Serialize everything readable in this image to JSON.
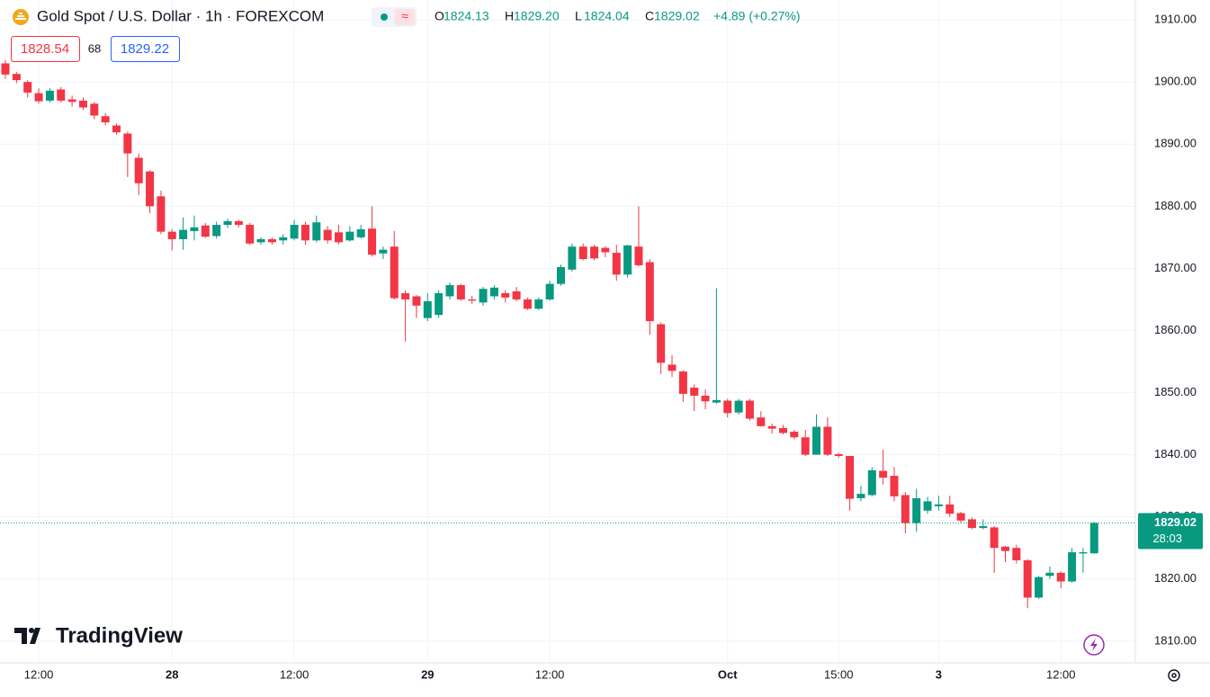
{
  "chart_data": {
    "type": "candlestick",
    "title": "Gold Spot / U.S. Dollar · 1h · FOREXCOM",
    "ohlc_header": [
      {
        "label": "O",
        "value": "1824.13"
      },
      {
        "label": "H",
        "value": "1829.20"
      },
      {
        "label": "L",
        "value": "1824.04"
      },
      {
        "label": "C",
        "value": "1829.02"
      }
    ],
    "change": "+4.89 (+0.27%)",
    "bid": "1828.54",
    "spread": "68",
    "ask": "1829.22",
    "last_price": {
      "value": 1829.02,
      "label": "1829.02"
    },
    "countdown": "28:03",
    "watermark": "TradingView",
    "up_color": "#089981",
    "down_color": "#f23645",
    "grid": true,
    "categories": [
      null,
      null,
      null,
      "12:00",
      null,
      null,
      null,
      null,
      null,
      null,
      null,
      null,
      null,
      null,
      null,
      "28",
      null,
      null,
      null,
      null,
      null,
      null,
      null,
      null,
      null,
      null,
      "12:00",
      null,
      null,
      null,
      null,
      null,
      null,
      null,
      null,
      null,
      null,
      null,
      "29",
      null,
      null,
      null,
      null,
      null,
      null,
      null,
      null,
      null,
      null,
      "12:00",
      null,
      null,
      null,
      null,
      null,
      null,
      null,
      null,
      null,
      null,
      null,
      null,
      null,
      null,
      null,
      "Oct",
      null,
      null,
      null,
      null,
      null,
      null,
      null,
      null,
      null,
      "15:00",
      null,
      null,
      null,
      null,
      null,
      null,
      null,
      null,
      "3",
      null,
      null,
      null,
      null,
      null,
      null,
      null,
      null,
      null,
      null,
      "12:00",
      null,
      null,
      null
    ],
    "open": [
      1903,
      1901.3,
      1900,
      1898.2,
      1897,
      1898.8,
      1897.2,
      1897,
      1896.5,
      1894.5,
      1893,
      1891.7,
      1887.8,
      1885.6,
      1881.6,
      1875.9,
      1874.7,
      1876,
      1876.9,
      1875.2,
      1877,
      1877.6,
      1877,
      1874.2,
      1874.7,
      1874.5,
      1874.8,
      1877,
      1874.5,
      1876.2,
      1875.8,
      1874.5,
      1875,
      1876.4,
      1872.4,
      1873.5,
      1866,
      1865.5,
      1862,
      1862.5,
      1865.5,
      1867.3,
      1865,
      1864.5,
      1865.5,
      1866,
      1866.3,
      1865,
      1863.5,
      1865,
      1867.5,
      1869.8,
      1873.5,
      1873.5,
      1873.3,
      1872.5,
      1869,
      1873.5,
      1871,
      1861,
      1854.5,
      1853.4,
      1850.8,
      1849.5,
      1848.4,
      1848.7,
      1846.8,
      1848.7,
      1846,
      1844.6,
      1844.3,
      1843.7,
      1842.8,
      1840,
      1844.5,
      1840.1,
      1839.8,
      1833,
      1833.5,
      1837.4,
      1836.6,
      1833.5,
      1829,
      1831,
      1831.7,
      1832,
      1830.6,
      1829.6,
      1828.2,
      1828.3,
      1825.2,
      1825,
      1823,
      1817,
      1820.5,
      1821,
      1819.6,
      1824.1,
      1824.13
    ],
    "high": [
      1903.5,
      1901.6,
      1900.3,
      1899,
      1899,
      1899.2,
      1897.8,
      1897.5,
      1896.8,
      1895,
      1893.3,
      1892,
      1888.5,
      1885.8,
      1882.5,
      1876.3,
      1878.2,
      1878.5,
      1877.3,
      1877.5,
      1878,
      1877.8,
      1877.3,
      1875,
      1875,
      1875.5,
      1877.8,
      1877.5,
      1878.5,
      1876.8,
      1877,
      1876.8,
      1877,
      1880,
      1873.5,
      1876,
      1866.5,
      1865.7,
      1866,
      1866.5,
      1867.7,
      1867.5,
      1865.6,
      1867,
      1867.3,
      1866.5,
      1867,
      1865.3,
      1865.3,
      1868,
      1870.6,
      1874,
      1874,
      1873.8,
      1873.6,
      1873.8,
      1873.8,
      1880,
      1871.5,
      1861.3,
      1856,
      1853.6,
      1851.3,
      1850.5,
      1866.8,
      1849,
      1849,
      1849,
      1847,
      1845,
      1844.8,
      1844,
      1844,
      1846.5,
      1846,
      1840.3,
      1839.8,
      1835,
      1838,
      1840.8,
      1838,
      1834,
      1834.5,
      1833.2,
      1833.4,
      1833.4,
      1830.8,
      1829.9,
      1829.6,
      1828.5,
      1825.3,
      1825.5,
      1823.2,
      1820.5,
      1822,
      1821.2,
      1825,
      1825,
      1829.2
    ],
    "low": [
      1900.5,
      1899.8,
      1897.5,
      1896.5,
      1896.7,
      1896.7,
      1896,
      1895.5,
      1894,
      1893,
      1891.5,
      1884.7,
      1881.8,
      1878.9,
      1875.5,
      1872.9,
      1873,
      1874.5,
      1874.9,
      1874.8,
      1876.5,
      1876.6,
      1873.8,
      1873.8,
      1873.8,
      1873.8,
      1874.5,
      1873.8,
      1874.2,
      1874,
      1873.9,
      1874.3,
      1874.8,
      1871.9,
      1871.5,
      1865,
      1858.2,
      1862,
      1861.5,
      1862,
      1865,
      1864.8,
      1864.3,
      1864,
      1865,
      1864.5,
      1864.7,
      1863.3,
      1863.3,
      1864.8,
      1867.2,
      1869.5,
      1871.3,
      1871.3,
      1871.8,
      1868,
      1868.5,
      1870.3,
      1859.3,
      1853,
      1852.5,
      1848.5,
      1847,
      1847.3,
      1848.2,
      1846,
      1846.5,
      1845.5,
      1844.5,
      1843.4,
      1843.3,
      1842.5,
      1839.8,
      1840,
      1839.8,
      1839.5,
      1831,
      1832.5,
      1833.3,
      1835.2,
      1832.5,
      1827.3,
      1827.6,
      1830.5,
      1831,
      1830,
      1829,
      1828,
      1828,
      1821,
      1822.7,
      1822.5,
      1815.3,
      1816.8,
      1820,
      1818.5,
      1819.4,
      1821,
      1824.04
    ],
    "close": [
      1901.2,
      1900.3,
      1898.3,
      1896.9,
      1898.6,
      1897,
      1896.8,
      1895.9,
      1894.6,
      1893.5,
      1891.9,
      1888.5,
      1883.7,
      1880,
      1875.9,
      1874.7,
      1876.2,
      1876.6,
      1875.1,
      1877,
      1877.6,
      1877,
      1874,
      1874.7,
      1874.2,
      1875,
      1877,
      1874.5,
      1877.4,
      1874.5,
      1874.2,
      1875.9,
      1876.3,
      1872.2,
      1873,
      1865.2,
      1865,
      1864,
      1864.7,
      1866,
      1867.3,
      1865,
      1864.8,
      1866.7,
      1866.9,
      1865.3,
      1865,
      1863.5,
      1865,
      1867.5,
      1870.2,
      1873.5,
      1871.5,
      1871.6,
      1872.6,
      1869,
      1873.7,
      1870.5,
      1861.5,
      1854.8,
      1853.5,
      1849.8,
      1849.5,
      1848.6,
      1848.8,
      1846.7,
      1848.7,
      1845.8,
      1844.6,
      1844.2,
      1843.5,
      1842.8,
      1840,
      1844.5,
      1840,
      1839.8,
      1832.9,
      1833.7,
      1837.5,
      1836.3,
      1833.3,
      1829,
      1833,
      1832.5,
      1832,
      1830.5,
      1829.4,
      1828.2,
      1828.5,
      1825,
      1824.5,
      1823,
      1817,
      1820.3,
      1821,
      1819.6,
      1824.3,
      1824.3,
      1829.02
    ],
    "ylim": [
      1806.5,
      1913.2
    ],
    "yticks": [
      {
        "value": 1810,
        "label": "1810.00"
      },
      {
        "value": 1820,
        "label": "1820.00"
      },
      {
        "value": 1830,
        "label": "1830.00"
      },
      {
        "value": 1840,
        "label": "1840.00"
      },
      {
        "value": 1850,
        "label": "1850.00"
      },
      {
        "value": 1860,
        "label": "1860.00"
      },
      {
        "value": 1870,
        "label": "1870.00"
      },
      {
        "value": 1880,
        "label": "1880.00"
      },
      {
        "value": 1890,
        "label": "1890.00"
      },
      {
        "value": 1900,
        "label": "1900.00"
      },
      {
        "value": 1910,
        "label": "1910.00"
      }
    ]
  }
}
